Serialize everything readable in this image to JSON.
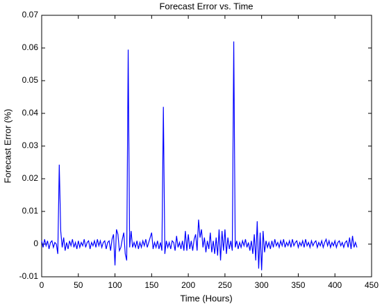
{
  "chart_data": {
    "type": "line",
    "title": "Forecast Error vs. Time",
    "xlabel": "Time (Hours)",
    "ylabel": "Forecast Error (%)",
    "x": [
      0,
      2,
      4,
      6,
      8,
      10,
      12,
      14,
      16,
      18,
      20,
      22,
      24,
      26,
      28,
      30,
      32,
      34,
      36,
      38,
      40,
      42,
      44,
      46,
      48,
      50,
      52,
      54,
      56,
      58,
      60,
      62,
      64,
      66,
      68,
      70,
      72,
      74,
      76,
      78,
      80,
      82,
      84,
      86,
      88,
      90,
      92,
      94,
      96,
      98,
      100,
      102,
      104,
      106,
      108,
      110,
      112,
      114,
      116,
      118,
      120,
      122,
      124,
      126,
      128,
      130,
      132,
      134,
      136,
      138,
      140,
      142,
      144,
      146,
      148,
      150,
      152,
      154,
      156,
      158,
      160,
      162,
      164,
      166,
      168,
      170,
      172,
      174,
      176,
      178,
      180,
      182,
      184,
      186,
      188,
      190,
      192,
      194,
      196,
      198,
      200,
      202,
      204,
      206,
      208,
      210,
      212,
      214,
      216,
      218,
      220,
      222,
      224,
      226,
      228,
      230,
      232,
      234,
      236,
      238,
      240,
      242,
      244,
      246,
      248,
      250,
      252,
      254,
      256,
      258,
      260,
      262,
      264,
      266,
      268,
      270,
      272,
      274,
      276,
      278,
      280,
      282,
      284,
      286,
      288,
      290,
      292,
      294,
      296,
      298,
      300,
      302,
      304,
      306,
      308,
      310,
      312,
      314,
      316,
      318,
      320,
      322,
      324,
      326,
      328,
      330,
      332,
      334,
      336,
      338,
      340,
      342,
      344,
      346,
      348,
      350,
      352,
      354,
      356,
      358,
      360,
      362,
      364,
      366,
      368,
      370,
      372,
      374,
      376,
      378,
      380,
      382,
      384,
      386,
      388,
      390,
      392,
      394,
      396,
      398,
      400,
      402,
      404,
      406,
      408,
      410,
      412,
      414,
      416,
      418,
      420,
      422,
      424,
      426,
      428,
      430
    ],
    "series": [
      {
        "color": "#0000ff",
        "values": [
          0.001,
          -0.001,
          0.0015,
          -0.0005,
          0.001,
          -0.0015,
          0.0005,
          0.001,
          -0.001,
          0.0005,
          0,
          -0.003,
          0.0243,
          0.004,
          -0.001,
          0.002,
          -0.002,
          0.0005,
          -0.0015,
          0.001,
          -0.0005,
          0.0015,
          -0.001,
          0.0005,
          -0.0015,
          0.001,
          -0.001,
          0.0005,
          -0.0005,
          0.0015,
          -0.001,
          0.0005,
          0.001,
          -0.0015,
          0.0005,
          -0.0005,
          0.001,
          -0.001,
          0.0015,
          -0.0005,
          0.001,
          -0.001,
          0.0005,
          0.001,
          -0.0015,
          0.0005,
          0.001,
          -0.002,
          0.0015,
          0.003,
          -0.0065,
          0.0045,
          0.003,
          -0.002,
          -0.001,
          0.0015,
          0.0035,
          -0.003,
          -0.005,
          0.0595,
          -0.001,
          0.004,
          -0.001,
          0.0005,
          -0.001,
          0.001,
          -0.0015,
          0.0005,
          -0.001,
          0.001,
          -0.0005,
          0.0015,
          -0.001,
          0.0005,
          0.002,
          0.0035,
          -0.0015,
          0.0005,
          -0.001,
          0.001,
          -0.0015,
          0.0005,
          -0.002,
          0.042,
          -0.003,
          0.001,
          -0.001,
          0.0005,
          -0.0015,
          0.001,
          0.0005,
          -0.002,
          0.0025,
          -0.001,
          0.0005,
          -0.0015,
          0.001,
          -0.002,
          0.004,
          -0.002,
          0.003,
          -0.0015,
          0.001,
          -0.002,
          0.0015,
          0.003,
          -0.002,
          0.0075,
          0.002,
          0.0045,
          -0.001,
          0.002,
          -0.0025,
          0.001,
          -0.0015,
          0.0035,
          -0.0025,
          0.001,
          -0.003,
          0.002,
          -0.0035,
          0.0045,
          -0.005,
          0.004,
          -0.002,
          0.0045,
          -0.003,
          0.002,
          -0.0015,
          0.001,
          -0.002,
          0.062,
          -0.001,
          0.001,
          -0.0015,
          0.0005,
          -0.001,
          0.001,
          -0.0005,
          0.0015,
          -0.001,
          0.0005,
          -0.002,
          0.001,
          -0.003,
          0.003,
          -0.005,
          0.007,
          -0.0075,
          0.0035,
          -0.008,
          0.004,
          -0.0025,
          0.001,
          -0.001,
          0.0005,
          -0.0015,
          0.001,
          -0.001,
          0.0015,
          -0.0005,
          0.0005,
          -0.001,
          0.001,
          -0.0005,
          0.0015,
          -0.001,
          0.0005,
          -0.0005,
          0.001,
          -0.001,
          0.0015,
          -0.0005,
          0.0005,
          0.001,
          -0.001,
          0.0005,
          -0.0005,
          0.001,
          -0.001,
          0.0015,
          -0.0005,
          0.0005,
          -0.001,
          0.001,
          -0.0005,
          0.0005,
          0.001,
          -0.001,
          0.0005,
          -0.0005,
          0.001,
          -0.001,
          0.0005,
          0.0015,
          -0.0005,
          0.001,
          -0.001,
          0.0005,
          -0.0005,
          0.001,
          -0.001,
          0.0005,
          0.001,
          -0.0005,
          0.0005,
          -0.001,
          0.0005,
          0.001,
          -0.001,
          0.002,
          -0.0015,
          0.0025,
          -0.001,
          0.0005,
          -0.001
        ]
      }
    ],
    "xlim": [
      0,
      450
    ],
    "xticks": [
      0,
      50,
      100,
      150,
      200,
      250,
      300,
      350,
      400,
      450
    ],
    "ylim": [
      -0.01,
      0.07
    ],
    "yticks": [
      -0.01,
      0,
      0.01,
      0.02,
      0.03,
      0.04,
      0.05,
      0.06,
      0.07
    ],
    "grid": false
  }
}
